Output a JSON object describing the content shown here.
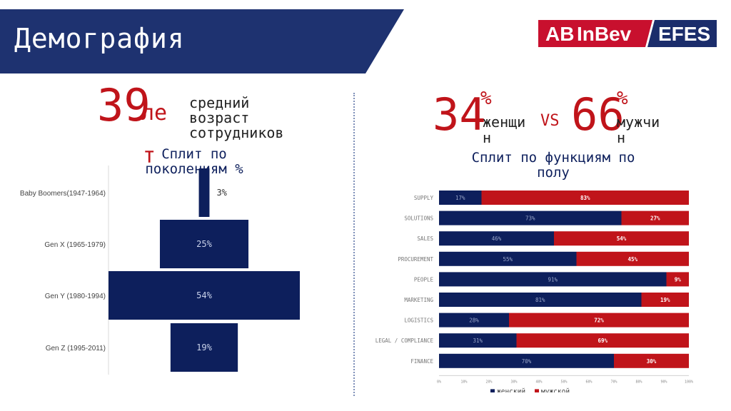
{
  "header": {
    "title": "Демография"
  },
  "logo": {
    "left": "AB",
    "mid": "InBev",
    "right": "EFES"
  },
  "colors": {
    "navy": "#0d1f5c",
    "banner": "#1e3270",
    "red": "#c0141a",
    "logo_red": "#c8102e",
    "logo_blue": "#1b2d6b"
  },
  "age_stat": {
    "value": "39",
    "unit_a": "ле",
    "unit_b": "т",
    "desc_1": "средний",
    "desc_2": "возраст",
    "desc_3": "сотрудников"
  },
  "gender_stat": {
    "female_value": "34",
    "female_pct": "%",
    "female_label_1": "женщи",
    "female_label_2": "н",
    "vs": "VS",
    "male_value": "66",
    "male_pct": "%",
    "male_label_1": "мужчи",
    "male_label_2": "н"
  },
  "chart_data": [
    {
      "type": "bar",
      "title": "Сплит по поколениям %",
      "categories": [
        "Baby Boomers(1947-1964)",
        "Gen X (1965-1979)",
        "Gen Y (1980-1994)",
        "Gen Z (1995-2011)"
      ],
      "values": [
        3,
        25,
        54,
        19
      ],
      "value_labels": [
        "3%",
        "25%",
        "54%",
        "19%"
      ],
      "orientation": "horizontal-centered"
    },
    {
      "type": "bar",
      "stacked_percent": true,
      "title": "Сплит по функциям по полу",
      "categories": [
        "SUPPLY",
        "SOLUTIONS",
        "SALES",
        "PROCUREMENT",
        "PEOPLE",
        "MARKETING",
        "LOGISTICS",
        "LEGAL / COMPLIANCE",
        "FINANCE"
      ],
      "series": [
        {
          "name": "женский",
          "values": [
            17,
            73,
            46,
            55,
            91,
            81,
            28,
            31,
            70
          ],
          "labels": [
            "17%",
            "73%",
            "46%",
            "55%",
            "91%",
            "81%",
            "28%",
            "31%",
            "70%"
          ]
        },
        {
          "name": "мужской",
          "values": [
            83,
            27,
            54,
            45,
            9,
            19,
            72,
            69,
            30
          ],
          "labels": [
            "83%",
            "27%",
            "54%",
            "45%",
            "9%",
            "19%",
            "72%",
            "69%",
            "30%"
          ]
        }
      ],
      "xticks": [
        "0%",
        "10%",
        "20%",
        "30%",
        "40%",
        "50%",
        "60%",
        "70%",
        "80%",
        "90%",
        "100%"
      ],
      "xlim": [
        0,
        100
      ],
      "legend": "bottom"
    }
  ]
}
